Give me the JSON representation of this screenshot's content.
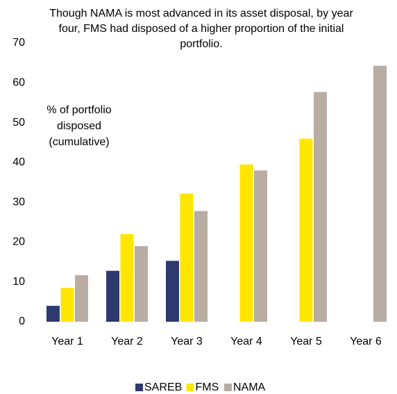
{
  "chart_data": {
    "type": "bar",
    "title": "Though NAMA is most advanced in its asset disposal, by year four, FMS had disposed of a higher proportion of the initial portfolio.",
    "annotation": "% of portfolio disposed (cumulative)",
    "categories": [
      "Year 1",
      "Year 2",
      "Year 3",
      "Year 4",
      "Year 5",
      "Year 6"
    ],
    "series": [
      {
        "name": "SAREB",
        "color": "#2e3a6e",
        "values": [
          4,
          12.8,
          15.3,
          null,
          null,
          null
        ]
      },
      {
        "name": "FMS",
        "color": "#ffe600",
        "values": [
          8.5,
          22,
          32.2,
          39.5,
          46,
          null
        ]
      },
      {
        "name": "NAMA",
        "color": "#b9aca3",
        "values": [
          11.7,
          19,
          27.8,
          38,
          57.7,
          64.3
        ]
      }
    ],
    "ylim": [
      0,
      70
    ],
    "yticks": [
      0,
      10,
      20,
      30,
      40,
      50,
      60,
      70
    ],
    "grid": false,
    "legend": "bottom"
  }
}
